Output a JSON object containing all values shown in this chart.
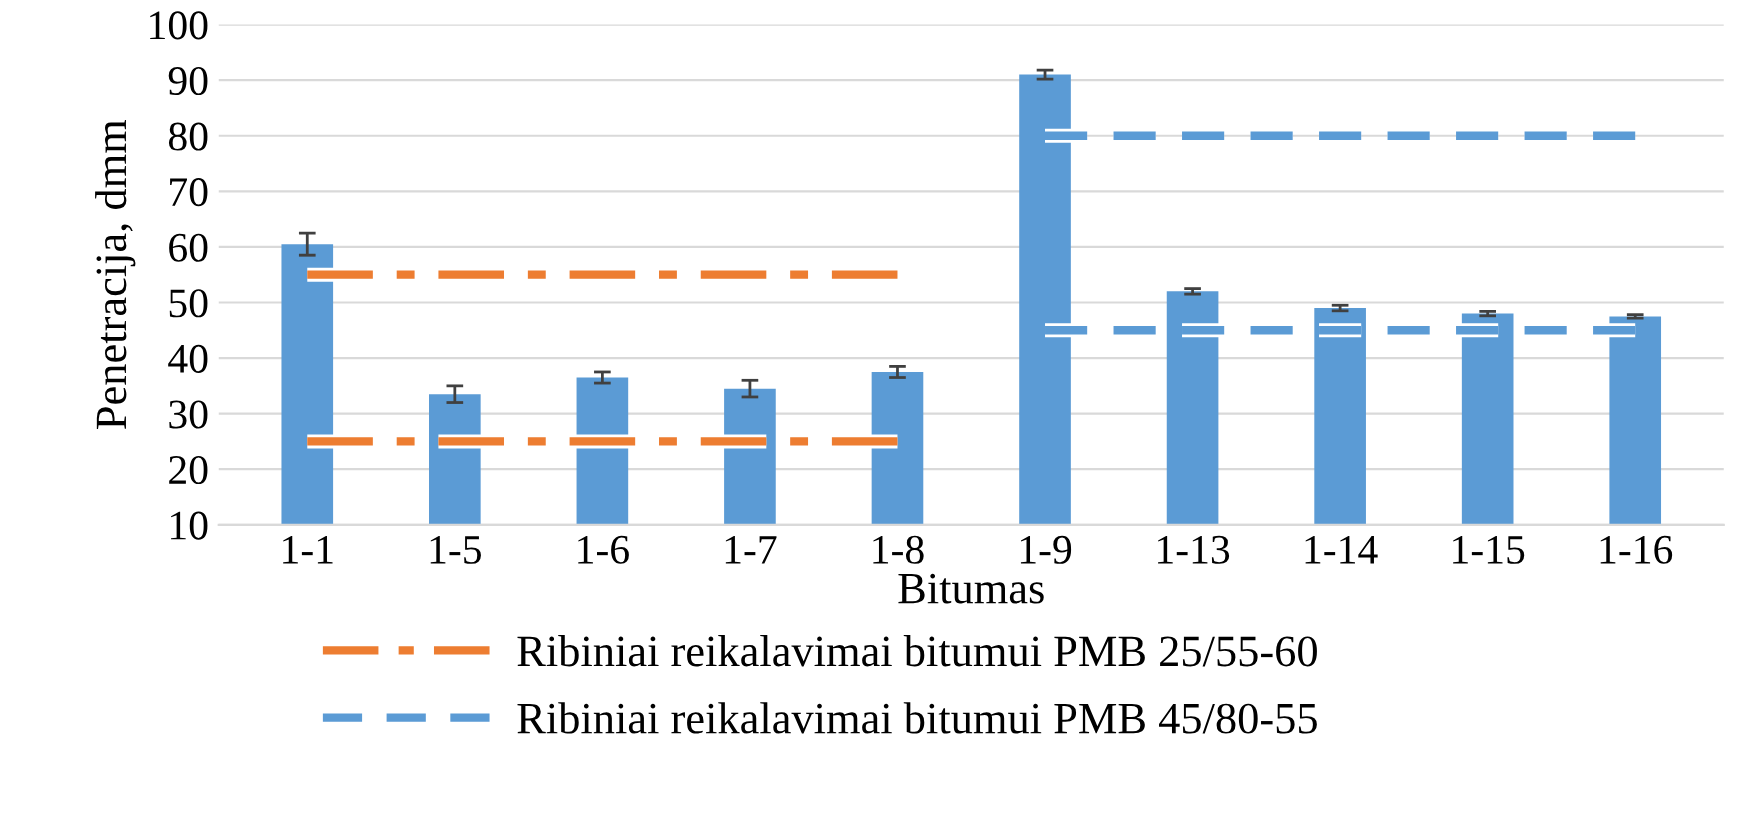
{
  "chart_data": {
    "type": "bar",
    "xlabel": "Bitumas",
    "ylabel": "Penetracija, dmm",
    "categories": [
      "1-1",
      "1-5",
      "1-6",
      "1-7",
      "1-8",
      "1-9",
      "1-13",
      "1-14",
      "1-15",
      "1-16"
    ],
    "ylim": [
      10,
      100
    ],
    "yticks": [
      10,
      20,
      30,
      40,
      50,
      60,
      70,
      80,
      90,
      100
    ],
    "grid": "y",
    "legend": "bottom",
    "series": [
      {
        "color": "#5b9bd5",
        "values": [
          60.5,
          33.5,
          36.5,
          34.5,
          37.5,
          91,
          52,
          49,
          48,
          47.5
        ],
        "errors": [
          2,
          1.5,
          1,
          1.5,
          1,
          0.8,
          0.5,
          0.5,
          0.4,
          0.3
        ]
      },
      {
        "type": "line",
        "name": "Ribiniai reikalavimai bitumui PMB 25/55-60",
        "color": "#ed7d31",
        "line_style": "dashdot",
        "values": [
          55,
          55,
          55,
          55,
          55,
          null,
          null,
          null,
          null,
          null
        ]
      },
      {
        "type": "line",
        "color": "#ed7d31",
        "line_style": "dashdot",
        "values": [
          25,
          25,
          25,
          25,
          25,
          null,
          null,
          null,
          null,
          null
        ]
      },
      {
        "type": "line",
        "name": "Ribiniai reikalavimai bitumui PMB 45/80-55",
        "color": "#5b9bd5",
        "line_style": "dashed",
        "values": [
          null,
          null,
          null,
          null,
          null,
          80,
          80,
          80,
          80,
          80
        ]
      },
      {
        "type": "line",
        "color": "#5b9bd5",
        "line_style": "dashed",
        "values": [
          null,
          null,
          null,
          null,
          null,
          45,
          45,
          45,
          45,
          45
        ]
      }
    ]
  }
}
